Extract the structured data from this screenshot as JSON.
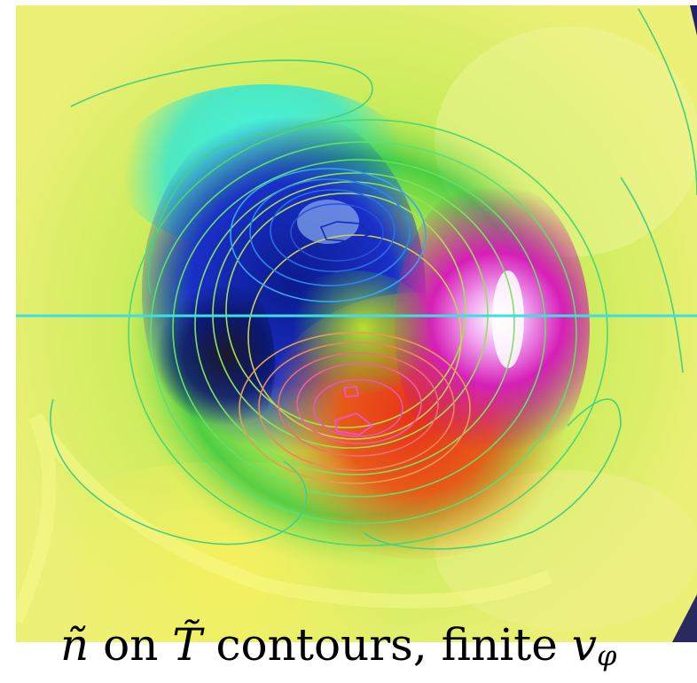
{
  "caption": {
    "n_symbol": "ñ",
    "on_text": " on ",
    "t_symbol": "T̃",
    "rest_text": " contours, finite ",
    "v_symbol": "v",
    "v_subscript": "φ"
  },
  "colors": {
    "background": "#ffffff",
    "dark_blue": "#0a1a7a",
    "blue": "#1f3cd6",
    "cyan": "#38f0e6",
    "green": "#3cdc46",
    "yellow_green": "#d6f060",
    "magenta": "#d61fb8",
    "red": "#e83a1a",
    "orange": "#f27a1c",
    "horizon_line": "#3ce0e0"
  }
}
